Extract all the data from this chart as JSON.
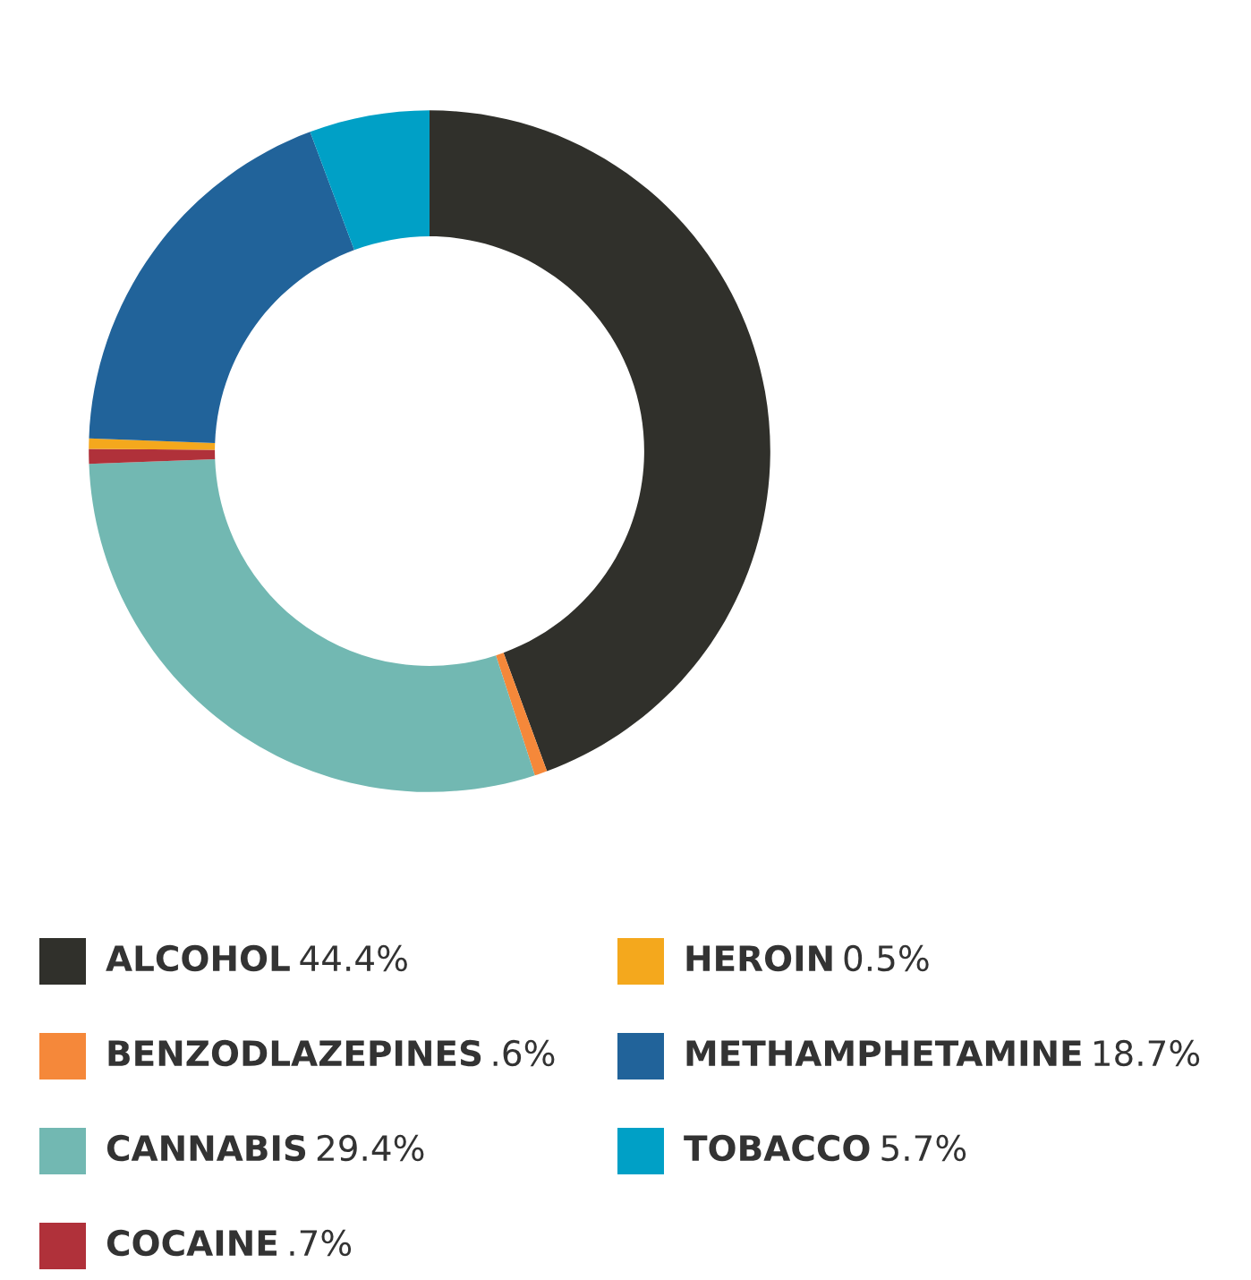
{
  "chart_data": {
    "type": "donut",
    "categories": [
      "ALCOHOL",
      "BENZODLAZEPINES",
      "CANNABIS",
      "COCAINE",
      "HEROIN",
      "METHAMPHETAMINE",
      "TOBACCO"
    ],
    "values": [
      44.4,
      0.6,
      29.4,
      0.7,
      0.5,
      18.7,
      5.7
    ],
    "value_labels": [
      "44.4%",
      ".6%",
      "29.4%",
      ".7%",
      "0.5%",
      "18.7%",
      "5.7%"
    ],
    "colors": [
      "#30302b",
      "#f5883a",
      "#72b8b2",
      "#b0313a",
      "#f4a81d",
      "#21639a",
      "#00a0c6"
    ],
    "legend": "bottom"
  }
}
